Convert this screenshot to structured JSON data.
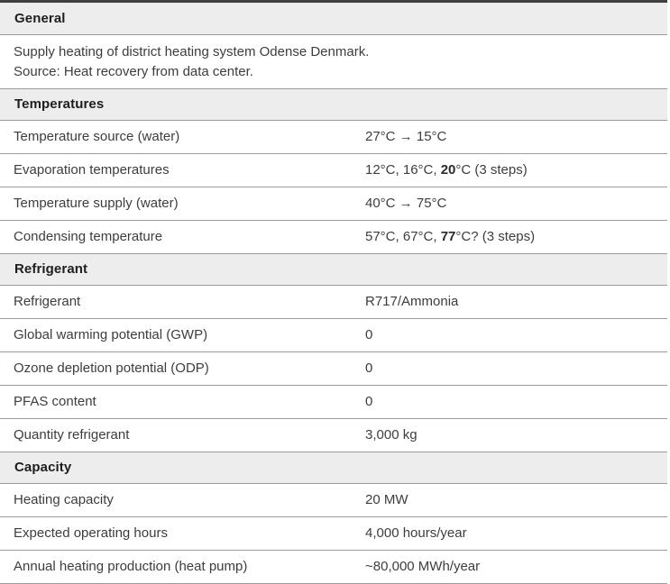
{
  "document": {
    "kind": "specification-table",
    "colors": {
      "band_background": "#ededed",
      "dark_top_rule": "#3f3f3f",
      "thin_rule": "#9b9b9b",
      "text": "#3d3d3d",
      "header_text": "#1e1e1e"
    },
    "sections": [
      {
        "title": "General",
        "type": "text",
        "lines": [
          "Supply heating of district heating system Odense Denmark.",
          "Source: Heat recovery from data center."
        ]
      },
      {
        "title": "Temperatures",
        "type": "rows",
        "rows": [
          {
            "label": "Temperature source (water)",
            "value": [
              {
                "t": "27°C → 15°C"
              }
            ]
          },
          {
            "label": "Evaporation temperatures",
            "value": [
              {
                "t": "12°C, 16°C, "
              },
              {
                "t": "20",
                "b": true
              },
              {
                "t": "°C (3 steps)"
              }
            ]
          },
          {
            "label": "Temperature supply (water)",
            "value": [
              {
                "t": "40°C → 75°C"
              }
            ]
          },
          {
            "label": "Condensing temperature",
            "value": [
              {
                "t": "57°C, 67°C, "
              },
              {
                "t": "77",
                "b": true
              },
              {
                "t": "°C? (3 steps)"
              }
            ]
          }
        ]
      },
      {
        "title": "Refrigerant",
        "type": "rows",
        "rows": [
          {
            "label": "Refrigerant",
            "value": [
              {
                "t": "R717/Ammonia"
              }
            ]
          },
          {
            "label": "Global warming potential (GWP)",
            "value": [
              {
                "t": "0"
              }
            ]
          },
          {
            "label": "Ozone depletion potential (ODP)",
            "value": [
              {
                "t": "0"
              }
            ]
          },
          {
            "label": "PFAS content",
            "value": [
              {
                "t": "0"
              }
            ]
          },
          {
            "label": "Quantity refrigerant",
            "value": [
              {
                "t": "3,000 kg"
              }
            ]
          }
        ]
      },
      {
        "title": "Capacity",
        "type": "rows",
        "rows": [
          {
            "label": "Heating capacity",
            "value": [
              {
                "t": "20 MW"
              }
            ]
          },
          {
            "label": "Expected operating hours",
            "value": [
              {
                "t": "4,000 hours/year"
              }
            ]
          },
          {
            "label": "Annual heating production (heat pump)",
            "value": [
              {
                "t": "~80,000 MWh/year"
              }
            ]
          }
        ]
      }
    ]
  }
}
